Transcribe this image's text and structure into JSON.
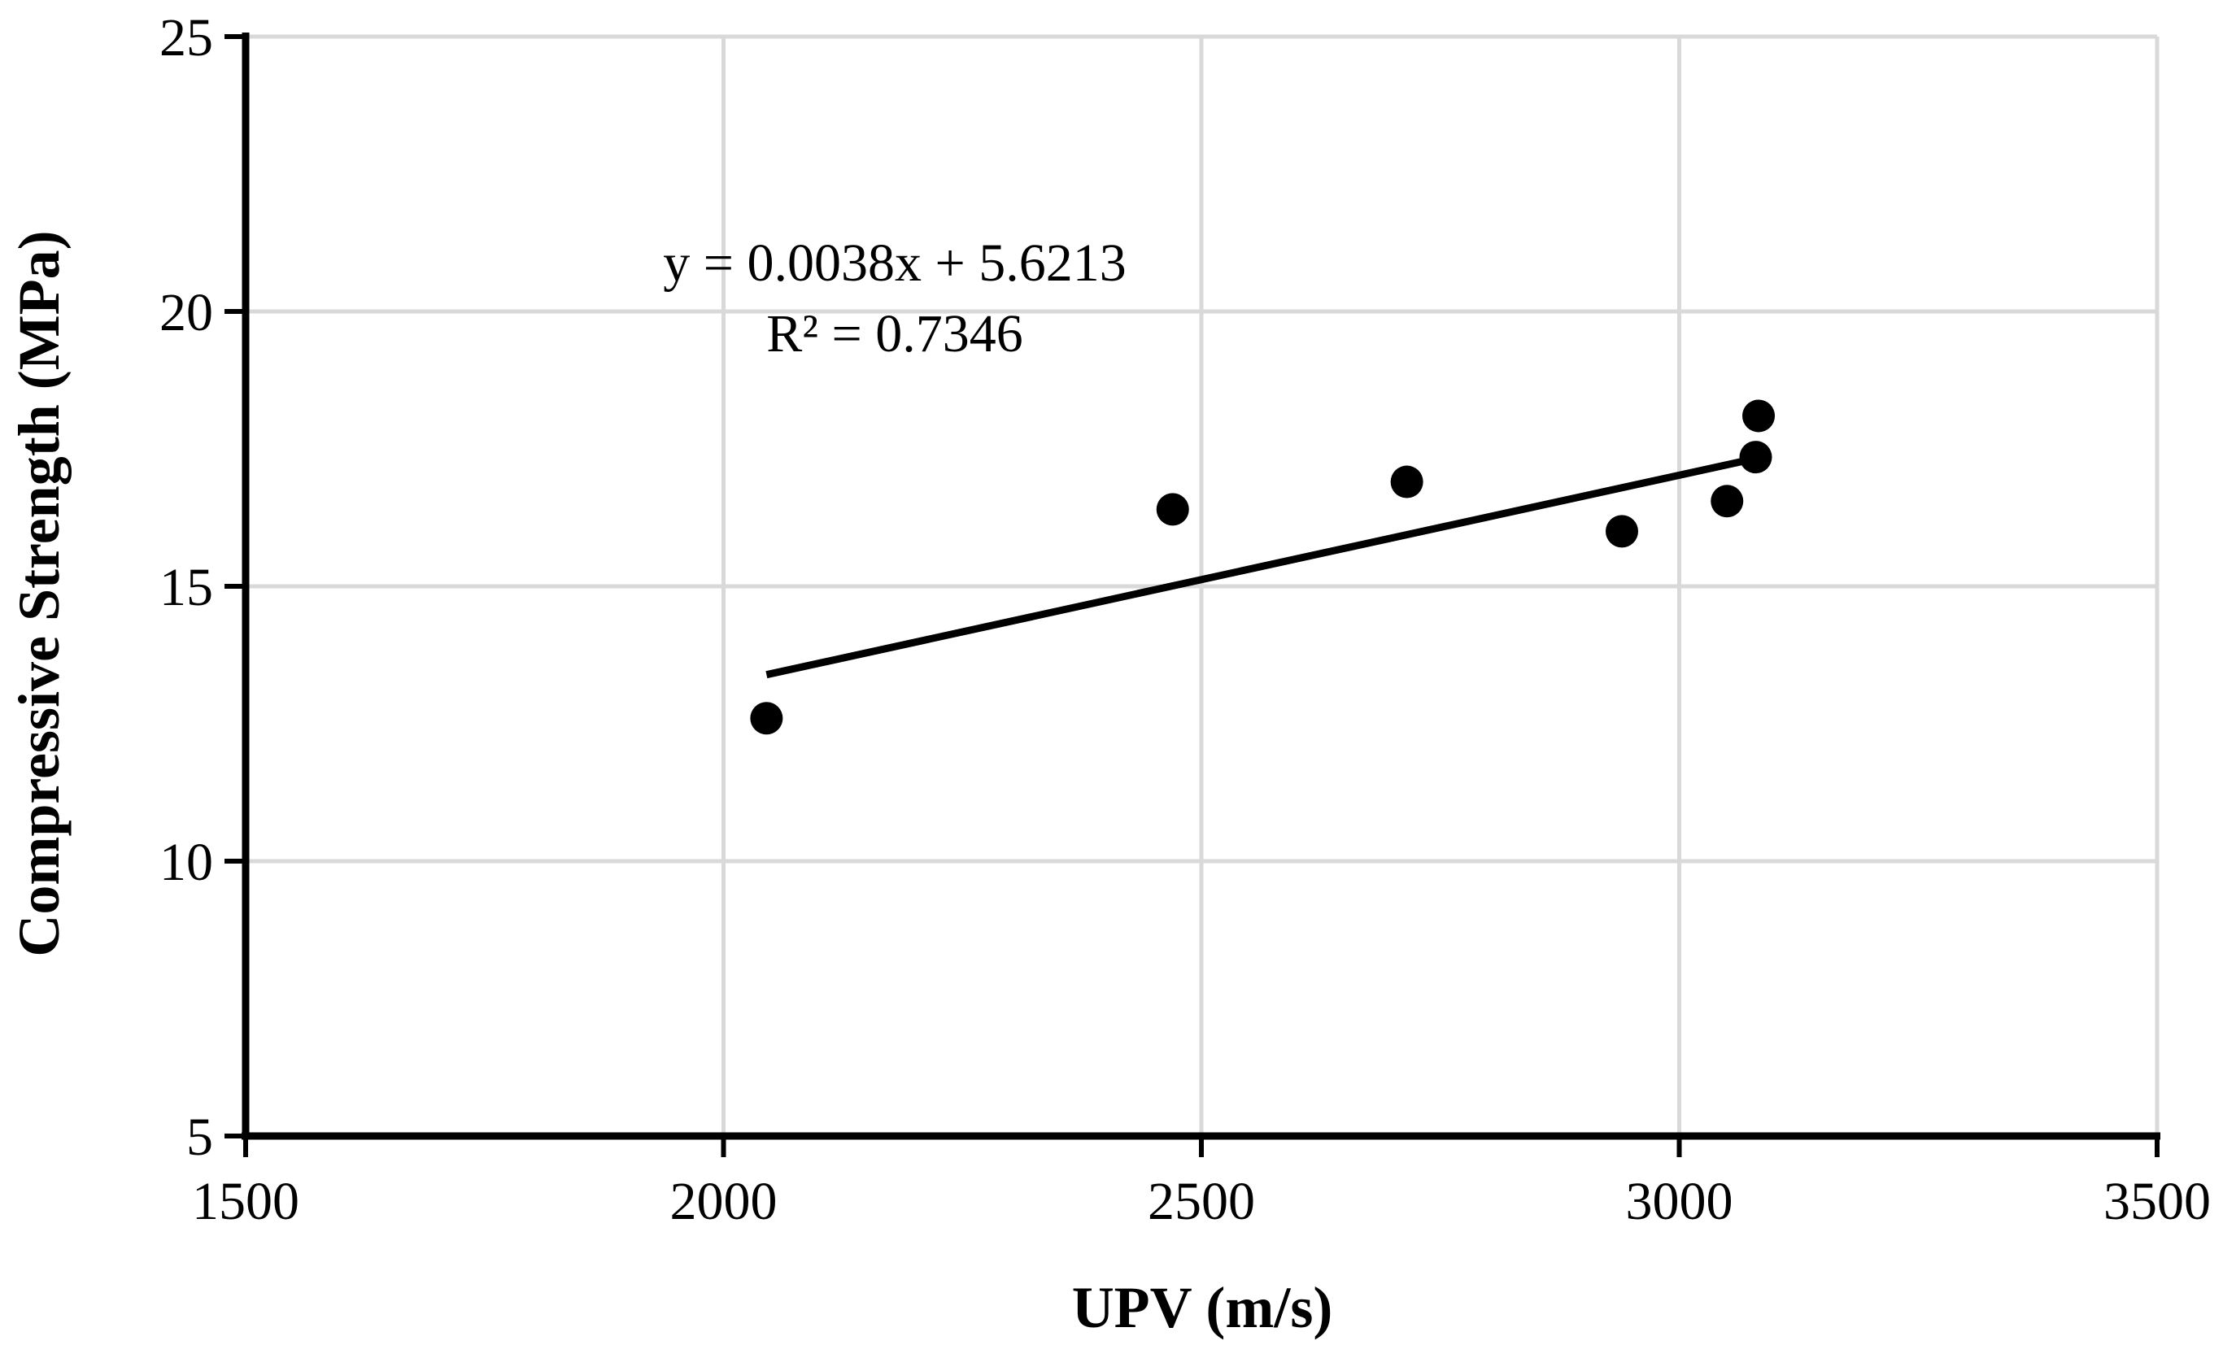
{
  "chart_data": {
    "type": "scatter",
    "title": "",
    "xlabel": "UPV (m/s)",
    "ylabel": "Compressive Strength (MPa)",
    "xlim": [
      1500,
      3500
    ],
    "ylim": [
      5,
      25
    ],
    "xticks": [
      1500,
      2000,
      2500,
      3000,
      3500
    ],
    "yticks": [
      5,
      10,
      15,
      20,
      25
    ],
    "x_tick_labels": [
      "1500",
      "2000",
      "2500",
      "3000",
      "3500"
    ],
    "y_tick_labels": [
      "5",
      "10",
      "15",
      "20",
      "25"
    ],
    "grid": true,
    "legend": "none",
    "series": [
      {
        "points": [
          {
            "x": 2045,
            "y": 12.6
          },
          {
            "x": 2470,
            "y": 16.4
          },
          {
            "x": 2715,
            "y": 16.9
          },
          {
            "x": 2940,
            "y": 16.0
          },
          {
            "x": 3050,
            "y": 16.55
          },
          {
            "x": 3080,
            "y": 17.35
          },
          {
            "x": 3083,
            "y": 18.1
          }
        ],
        "color": "#000000"
      }
    ],
    "trendline": {
      "type": "linear",
      "slope": 0.0038,
      "intercept": 5.6213,
      "x_range": [
        2045,
        3083
      ],
      "equation_text": "y = 0.0038x + 5.6213",
      "r2_text": "R² = 0.7346"
    },
    "colors": {
      "grid": "#d9d9d9",
      "axis": "#000000",
      "marker": "#000000",
      "trendline": "#000000"
    }
  }
}
